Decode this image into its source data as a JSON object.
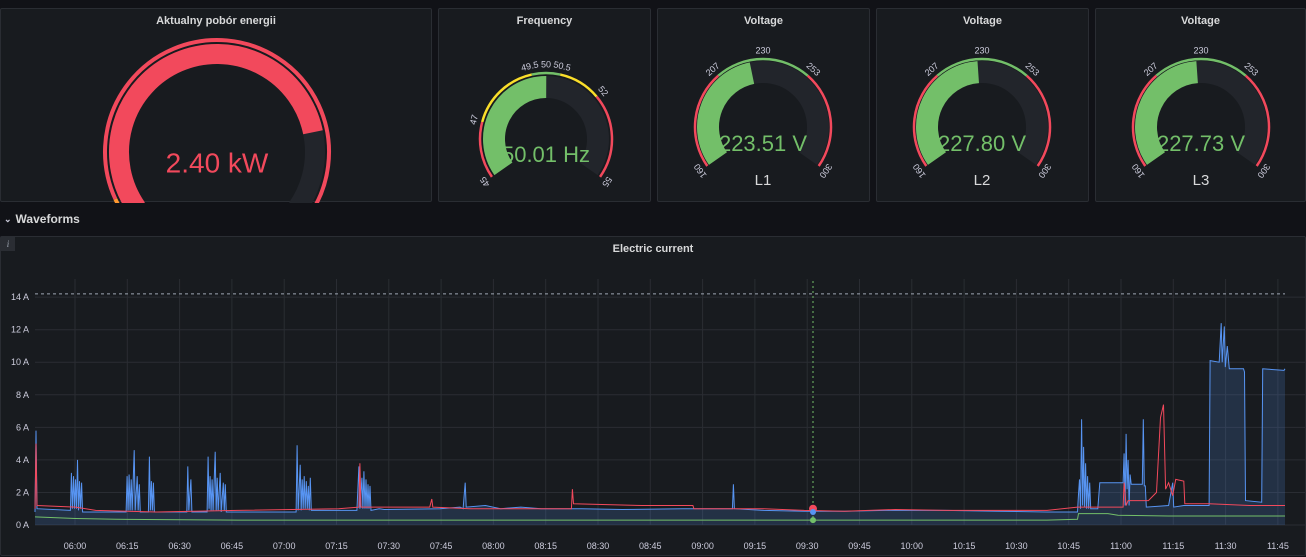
{
  "colors": {
    "red": "#f2495c",
    "green": "#73bf69",
    "yellow": "#fade2a",
    "orange": "#ff9830",
    "blue": "#5794f2",
    "track": "#22252b"
  },
  "gauges": {
    "power": {
      "title": "Aktualny pobór energii",
      "value_text": "2.40 kW",
      "value": 2.4
    },
    "frequency": {
      "title": "Frequency",
      "value_text": "50.01 Hz",
      "value": 50.01,
      "min": 45,
      "max": 55,
      "ticks": [
        "45",
        "47",
        "49.5",
        "50",
        "50.5",
        "52",
        "55"
      ]
    },
    "l1": {
      "title": "Voltage",
      "value_text": "223.51 V",
      "value": 223.51,
      "label": "L1",
      "min": 160,
      "max": 300,
      "ticks": [
        "160",
        "207",
        "230",
        "253",
        "300"
      ]
    },
    "l2": {
      "title": "Voltage",
      "value_text": "227.80 V",
      "value": 227.8,
      "label": "L2",
      "min": 160,
      "max": 300,
      "ticks": [
        "160",
        "207",
        "230",
        "253",
        "300"
      ]
    },
    "l3": {
      "title": "Voltage",
      "value_text": "227.73 V",
      "value": 227.73,
      "label": "L3",
      "min": 160,
      "max": 300,
      "ticks": [
        "160",
        "207",
        "230",
        "253",
        "300"
      ]
    }
  },
  "row": {
    "title": "Waveforms",
    "chevron": "chevron-down-icon"
  },
  "chart": {
    "info_icon": "i",
    "chart_data": {
      "type": "line",
      "title": "Electric current",
      "yticks": [
        "0 A",
        "2 A",
        "4 A",
        "6 A",
        "8 A",
        "10 A",
        "12 A",
        "14 A"
      ],
      "ylim": [
        0,
        14.5
      ],
      "threshold": 14.2,
      "xticks": [
        "06:00",
        "06:15",
        "06:30",
        "06:45",
        "07:00",
        "07:15",
        "07:30",
        "07:45",
        "08:00",
        "08:15",
        "08:30",
        "08:45",
        "09:00",
        "09:15",
        "09:30",
        "09:45",
        "10:00",
        "10:15",
        "10:30",
        "10:45",
        "11:00",
        "11:15",
        "11:30",
        "11:45"
      ],
      "series": [
        {
          "color": "#5794f2",
          "points": [
            [
              0,
              0.8
            ],
            [
              1,
              5.8
            ],
            [
              2,
              1.0
            ],
            [
              35,
              0.9
            ],
            [
              36,
              3.2
            ],
            [
              37,
              1.0
            ],
            [
              38,
              3.0
            ],
            [
              39,
              1.0
            ],
            [
              40,
              2.8
            ],
            [
              41,
              1.0
            ],
            [
              42,
              4.0
            ],
            [
              43,
              0.9
            ],
            [
              44,
              2.7
            ],
            [
              45,
              1.0
            ],
            [
              46,
              2.6
            ],
            [
              47,
              0.8
            ],
            [
              90,
              0.8
            ],
            [
              91,
              3.0
            ],
            [
              92,
              0.9
            ],
            [
              93,
              3.1
            ],
            [
              94,
              0.9
            ],
            [
              95,
              2.8
            ],
            [
              96,
              0.9
            ],
            [
              98,
              4.6
            ],
            [
              99,
              0.9
            ],
            [
              101,
              3.0
            ],
            [
              102,
              0.9
            ],
            [
              103,
              2.5
            ],
            [
              104,
              0.8
            ],
            [
              112,
              0.8
            ],
            [
              113,
              4.2
            ],
            [
              114,
              0.9
            ],
            [
              115,
              2.7
            ],
            [
              116,
              0.9
            ],
            [
              117,
              2.6
            ],
            [
              118,
              0.8
            ],
            [
              150,
              0.8
            ],
            [
              151,
              3.6
            ],
            [
              152,
              0.9
            ],
            [
              154,
              2.8
            ],
            [
              155,
              0.8
            ],
            [
              170,
              0.8
            ],
            [
              171,
              4.2
            ],
            [
              172,
              1.0
            ],
            [
              173,
              3.0
            ],
            [
              174,
              0.9
            ],
            [
              175,
              2.8
            ],
            [
              176,
              0.9
            ],
            [
              178,
              4.5
            ],
            [
              179,
              0.9
            ],
            [
              180,
              2.9
            ],
            [
              181,
              0.9
            ],
            [
              183,
              3.2
            ],
            [
              184,
              0.8
            ],
            [
              186,
              2.6
            ],
            [
              187,
              0.9
            ],
            [
              188,
              2.5
            ],
            [
              189,
              0.8
            ],
            [
              258,
              0.8
            ],
            [
              259,
              4.9
            ],
            [
              260,
              0.9
            ],
            [
              262,
              3.7
            ],
            [
              263,
              0.9
            ],
            [
              264,
              2.8
            ],
            [
              265,
              1.0
            ],
            [
              266,
              3.0
            ],
            [
              267,
              1.0
            ],
            [
              268,
              2.7
            ],
            [
              269,
              1.0
            ],
            [
              270,
              2.4
            ],
            [
              271,
              0.9
            ],
            [
              272,
              2.9
            ],
            [
              273,
              0.9
            ],
            [
              318,
              0.9
            ],
            [
              320,
              3.6
            ],
            [
              321,
              1.0
            ],
            [
              323,
              2.9
            ],
            [
              324,
              1.0
            ],
            [
              325,
              3.3
            ],
            [
              326,
              1.0
            ],
            [
              327,
              2.8
            ],
            [
              328,
              1.0
            ],
            [
              329,
              2.5
            ],
            [
              330,
              1.0
            ],
            [
              331,
              2.4
            ],
            [
              332,
              0.9
            ],
            [
              340,
              1.0
            ],
            [
              345,
              0.95
            ],
            [
              400,
              1.0
            ],
            [
              420,
              1.1
            ],
            [
              423,
              1.0
            ],
            [
              425,
              2.6
            ],
            [
              426,
              1.1
            ],
            [
              445,
              1.2
            ],
            [
              460,
              1.0
            ],
            [
              480,
              1.1
            ],
            [
              500,
              1.0
            ],
            [
              540,
              1.0
            ],
            [
              580,
              0.95
            ],
            [
              640,
              1.0
            ],
            [
              689,
              1.0
            ],
            [
              690,
              2.5
            ],
            [
              691,
              1.0
            ],
            [
              720,
              0.9
            ],
            [
              760,
              0.85
            ],
            [
              800,
              0.85
            ],
            [
              840,
              0.9
            ],
            [
              900,
              0.9
            ],
            [
              950,
              0.85
            ],
            [
              1000,
              0.8
            ],
            [
              1030,
              0.8
            ],
            [
              1031,
              1.9
            ],
            [
              1032,
              2.8
            ],
            [
              1033,
              1.0
            ],
            [
              1034,
              6.5
            ],
            [
              1035,
              1.2
            ],
            [
              1036,
              4.8
            ],
            [
              1037,
              1.1
            ],
            [
              1038,
              3.8
            ],
            [
              1039,
              1.0
            ],
            [
              1040,
              3.0
            ],
            [
              1041,
              1.0
            ],
            [
              1042,
              2.6
            ],
            [
              1043,
              1.0
            ],
            [
              1050,
              1.0
            ],
            [
              1052,
              2.6
            ],
            [
              1075,
              2.6
            ],
            [
              1076,
              4.4
            ],
            [
              1077,
              1.2
            ],
            [
              1078,
              5.6
            ],
            [
              1079,
              2.2
            ],
            [
              1080,
              4.0
            ],
            [
              1081,
              1.2
            ],
            [
              1082,
              3.1
            ],
            [
              1083,
              2.5
            ],
            [
              1094,
              2.5
            ],
            [
              1095,
              6.5
            ],
            [
              1096,
              2.4
            ],
            [
              1097,
              2.4
            ],
            [
              1098,
              1.1
            ],
            [
              1120,
              1.2
            ],
            [
              1124,
              2.6
            ],
            [
              1125,
              1.1
            ],
            [
              1135,
              1.2
            ],
            [
              1160,
              1.2
            ],
            [
              1161,
              10.1
            ],
            [
              1170,
              10.0
            ],
            [
              1172,
              12.4
            ],
            [
              1173,
              10.0
            ],
            [
              1175,
              12.2
            ],
            [
              1176,
              9.7
            ],
            [
              1178,
              11.0
            ],
            [
              1180,
              9.6
            ],
            [
              1194,
              9.6
            ],
            [
              1195,
              9.4
            ],
            [
              1196,
              1.5
            ],
            [
              1212,
              1.4
            ],
            [
              1213,
              9.6
            ],
            [
              1234,
              9.5
            ],
            [
              1235,
              9.6
            ]
          ]
        },
        {
          "color": "#f2495c",
          "points": [
            [
              0,
              1.0
            ],
            [
              1,
              5.0
            ],
            [
              2,
              1.2
            ],
            [
              40,
              1.1
            ],
            [
              60,
              0.9
            ],
            [
              120,
              0.8
            ],
            [
              200,
              0.9
            ],
            [
              300,
              1.0
            ],
            [
              320,
              1.1
            ],
            [
              321,
              3.8
            ],
            [
              322,
              1.1
            ],
            [
              390,
              1.1
            ],
            [
              392,
              1.6
            ],
            [
              393,
              1.1
            ],
            [
              430,
              1.0
            ],
            [
              520,
              1.0
            ],
            [
              530,
              1.0
            ],
            [
              531,
              2.2
            ],
            [
              532,
              1.3
            ],
            [
              600,
              1.2
            ],
            [
              650,
              1.2
            ],
            [
              651,
              1.0
            ],
            [
              720,
              1.0
            ],
            [
              760,
              0.9
            ],
            [
              800,
              0.85
            ],
            [
              850,
              0.95
            ],
            [
              900,
              0.9
            ],
            [
              960,
              0.9
            ],
            [
              1000,
              0.9
            ],
            [
              1030,
              1.1
            ],
            [
              1075,
              1.1
            ],
            [
              1076,
              2.6
            ],
            [
              1078,
              1.2
            ],
            [
              1080,
              1.5
            ],
            [
              1100,
              1.5
            ],
            [
              1108,
              2.0
            ],
            [
              1112,
              6.6
            ],
            [
              1115,
              7.4
            ],
            [
              1117,
              2.2
            ],
            [
              1120,
              2.6
            ],
            [
              1124,
              1.8
            ],
            [
              1127,
              2.8
            ],
            [
              1135,
              2.7
            ],
            [
              1136,
              1.3
            ],
            [
              1160,
              1.3
            ],
            [
              1200,
              1.2
            ],
            [
              1235,
              1.2
            ]
          ]
        },
        {
          "color": "#73bf69",
          "points": [
            [
              0,
              0.5
            ],
            [
              40,
              0.4
            ],
            [
              80,
              0.35
            ],
            [
              200,
              0.3
            ],
            [
              300,
              0.3
            ],
            [
              400,
              0.3
            ],
            [
              500,
              0.3
            ],
            [
              600,
              0.3
            ],
            [
              700,
              0.3
            ],
            [
              800,
              0.3
            ],
            [
              900,
              0.3
            ],
            [
              1000,
              0.3
            ],
            [
              1030,
              0.35
            ],
            [
              1031,
              0.7
            ],
            [
              1060,
              0.7
            ],
            [
              1070,
              0.6
            ],
            [
              1120,
              0.55
            ],
            [
              1200,
              0.55
            ],
            [
              1235,
              0.55
            ]
          ]
        }
      ]
    }
  }
}
